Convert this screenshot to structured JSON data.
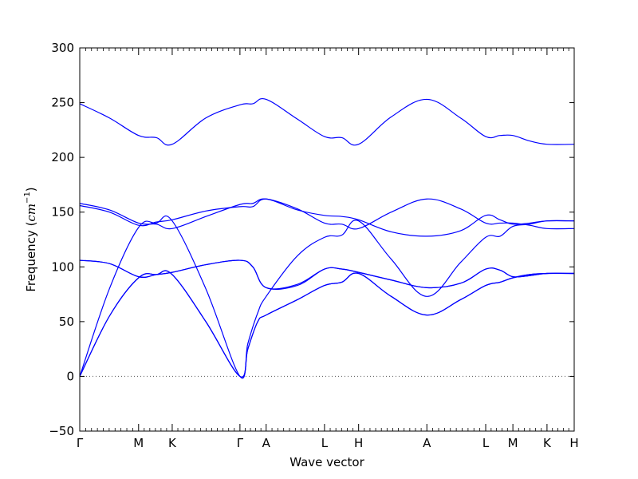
{
  "chart_data": {
    "type": "line",
    "title": "",
    "xlabel": "Wave vector",
    "ylabel_main": "Frequency (",
    "ylabel_unit_base": "cm",
    "ylabel_unit_exp": "−1",
    "ylabel_close": ")",
    "ylim": [
      -50,
      300
    ],
    "yticks": [
      {
        "value": -50,
        "label": "−50"
      },
      {
        "value": 0,
        "label": "0"
      },
      {
        "value": 50,
        "label": "50"
      },
      {
        "value": 100,
        "label": "100"
      },
      {
        "value": 150,
        "label": "150"
      },
      {
        "value": 200,
        "label": "200"
      },
      {
        "value": 250,
        "label": "250"
      },
      {
        "value": 300,
        "label": "300"
      }
    ],
    "xlim": [
      0,
      1
    ],
    "xticks": [
      {
        "pos": 0.0,
        "label": "Γ"
      },
      {
        "pos": 0.119,
        "label": "M"
      },
      {
        "pos": 0.187,
        "label": "K"
      },
      {
        "pos": 0.324,
        "label": "Γ"
      },
      {
        "pos": 0.377,
        "label": "A"
      },
      {
        "pos": 0.495,
        "label": "L"
      },
      {
        "pos": 0.564,
        "label": "H"
      },
      {
        "pos": 0.702,
        "label": "A"
      },
      {
        "pos": 0.821,
        "label": "L"
      },
      {
        "pos": 0.876,
        "label": "M"
      },
      {
        "pos": 0.945,
        "label": "K"
      },
      {
        "pos": 1.0,
        "label": "H"
      }
    ],
    "zero_line": true,
    "line_color": "#0000ff",
    "zero_line_color": "#555555",
    "series": [
      {
        "x": [
          0,
          0.06,
          0.119,
          0.155,
          0.187,
          0.255,
          0.324,
          0.35,
          0.377,
          0.44,
          0.495,
          0.53,
          0.564,
          0.63,
          0.702,
          0.77,
          0.821,
          0.85,
          0.876,
          0.91,
          0.945,
          1.0
        ],
        "y": [
          249,
          236,
          220,
          218,
          212,
          236,
          248,
          249,
          253,
          235,
          219,
          218,
          212,
          237,
          253,
          236,
          219,
          220,
          220,
          215,
          212,
          212
        ]
      },
      {
        "x": [
          0,
          0.06,
          0.119,
          0.155,
          0.187,
          0.255,
          0.324,
          0.35,
          0.377,
          0.44,
          0.495,
          0.53,
          0.564,
          0.63,
          0.702,
          0.77,
          0.821,
          0.85,
          0.876,
          0.91,
          0.945,
          1.0
        ],
        "y": [
          158,
          152,
          140,
          139,
          135,
          146,
          157,
          158,
          162,
          153,
          140,
          139,
          135,
          150,
          162,
          153,
          140,
          140,
          140,
          138,
          135,
          135
        ]
      },
      {
        "x": [
          0,
          0.06,
          0.119,
          0.155,
          0.187,
          0.255,
          0.324,
          0.35,
          0.377,
          0.44,
          0.495,
          0.53,
          0.564,
          0.63,
          0.702,
          0.77,
          0.821,
          0.85,
          0.876,
          0.91,
          0.945,
          1.0
        ],
        "y": [
          156,
          150,
          138,
          141,
          143,
          151,
          155,
          155,
          162,
          152,
          147,
          146,
          143,
          132,
          128,
          133,
          147,
          143,
          139,
          140,
          142,
          142
        ]
      },
      {
        "x": [
          0,
          0.06,
          0.119,
          0.155,
          0.187,
          0.255,
          0.324,
          0.34,
          0.36,
          0.377,
          0.44,
          0.495,
          0.53,
          0.564,
          0.63,
          0.702,
          0.77,
          0.821,
          0.85,
          0.876,
          0.91,
          0.945,
          1.0
        ],
        "y": [
          0,
          80,
          136,
          140,
          142,
          80,
          0,
          30,
          58,
          73,
          110,
          127,
          129,
          142,
          107,
          73,
          104,
          127,
          128,
          137,
          139,
          142,
          142
        ]
      },
      {
        "x": [
          0,
          0.06,
          0.119,
          0.155,
          0.187,
          0.255,
          0.324,
          0.35,
          0.377,
          0.44,
          0.495,
          0.53,
          0.564,
          0.63,
          0.702,
          0.77,
          0.821,
          0.85,
          0.876,
          0.91,
          0.945,
          1.0
        ],
        "y": [
          106,
          103,
          91,
          93,
          95,
          102,
          106,
          100,
          81,
          83,
          98,
          98,
          95,
          88,
          81,
          85,
          98,
          97,
          91,
          92,
          94,
          94
        ]
      },
      {
        "x": [
          0,
          0.06,
          0.119,
          0.155,
          0.187,
          0.255,
          0.324,
          0.35,
          0.377,
          0.44,
          0.495,
          0.53,
          0.564,
          0.63,
          0.702,
          0.77,
          0.821,
          0.85,
          0.876,
          0.91,
          0.945,
          1.0
        ],
        "y": [
          106,
          103,
          91,
          93,
          95,
          102,
          106,
          100,
          81,
          84,
          98,
          98,
          95,
          88,
          81,
          85,
          98,
          97,
          91,
          92,
          94,
          94
        ]
      },
      {
        "x": [
          0,
          0.06,
          0.119,
          0.155,
          0.187,
          0.255,
          0.324,
          0.34,
          0.36,
          0.377,
          0.44,
          0.495,
          0.53,
          0.564,
          0.63,
          0.702,
          0.77,
          0.821,
          0.85,
          0.876,
          0.91,
          0.945,
          1.0
        ],
        "y": [
          0,
          55,
          90,
          93,
          93,
          50,
          0,
          25,
          50,
          56,
          70,
          83,
          86,
          94,
          73,
          56,
          70,
          83,
          86,
          90,
          93,
          94,
          94
        ]
      },
      {
        "x": [
          0,
          0.06,
          0.119,
          0.155,
          0.187,
          0.255,
          0.324,
          0.34,
          0.36,
          0.377,
          0.44,
          0.495,
          0.53,
          0.564,
          0.63,
          0.702,
          0.77,
          0.821,
          0.85,
          0.876,
          0.91,
          0.945,
          1.0
        ],
        "y": [
          0,
          55,
          90,
          93,
          93,
          50,
          0,
          25,
          50,
          56,
          70,
          83,
          86,
          94,
          73,
          56,
          70,
          83,
          86,
          90,
          93,
          94,
          94
        ]
      }
    ]
  }
}
